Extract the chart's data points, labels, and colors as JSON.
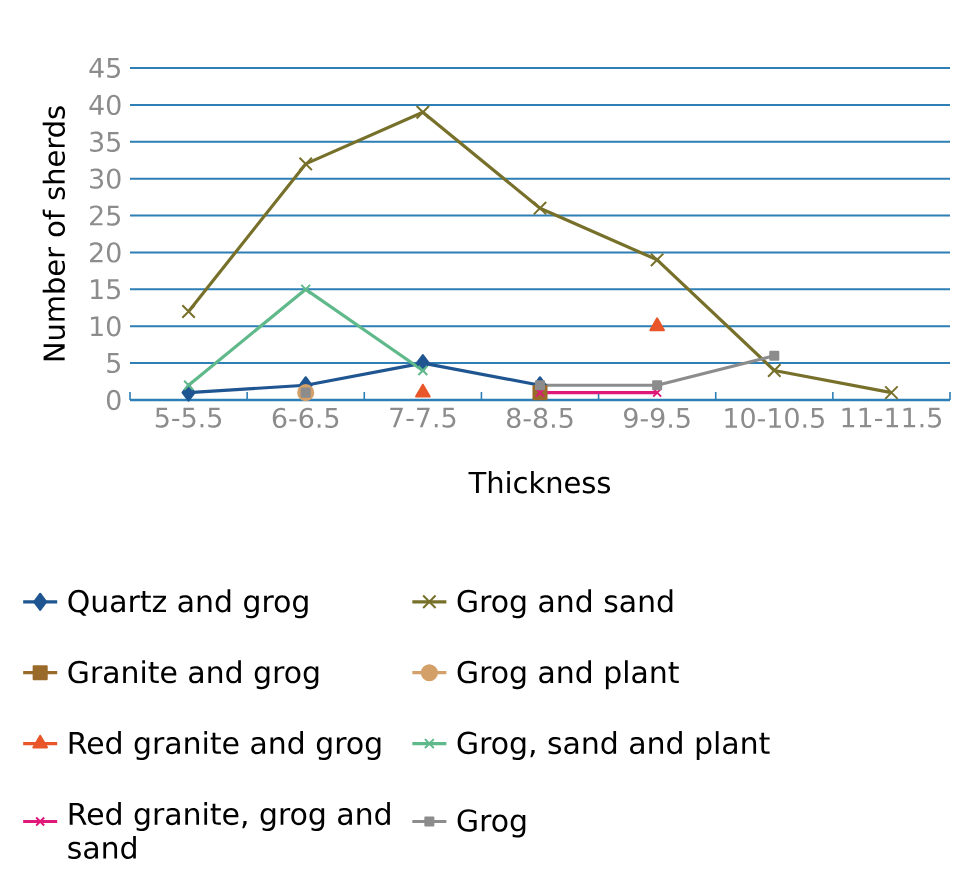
{
  "chart_data": {
    "type": "line",
    "xlabel": "Thickness",
    "ylabel": "Number of sherds",
    "categories": [
      "5-5.5",
      "6-6.5",
      "7-7.5",
      "8-8.5",
      "9-9.5",
      "10-10.5",
      "11-11.5"
    ],
    "ylim": [
      0,
      45
    ],
    "yticks": [
      0,
      5,
      10,
      15,
      20,
      25,
      30,
      35,
      40,
      45
    ],
    "grid": "y",
    "legend": "bottom",
    "series": [
      {
        "name": "Quartz and grog",
        "color": "#1f5591",
        "marker": "diamond",
        "values": [
          1,
          2,
          5,
          2,
          null,
          null,
          null
        ]
      },
      {
        "name": "Grog and sand",
        "color": "#77702a",
        "marker": "cross",
        "values": [
          12,
          32,
          39,
          26,
          19,
          4,
          1
        ]
      },
      {
        "name": "Granite and grog",
        "color": "#9a6a2a",
        "marker": "square",
        "values": [
          null,
          null,
          null,
          1,
          null,
          null,
          null
        ]
      },
      {
        "name": "Grog and plant",
        "color": "#d4a06a",
        "marker": "circle",
        "values": [
          null,
          1,
          null,
          null,
          null,
          null,
          null
        ]
      },
      {
        "name": "Red granite and grog",
        "type": "scatter",
        "color": "#e8562a",
        "marker": "triangle",
        "values": [
          null,
          null,
          1,
          null,
          10,
          null,
          null
        ]
      },
      {
        "name": "Grog, sand and plant",
        "color": "#5fb98a",
        "marker": "cross",
        "values": [
          2,
          15,
          4,
          null,
          null,
          null,
          null
        ]
      },
      {
        "name": "Red granite, grog and sand",
        "color": "#e0187a",
        "marker": "cross",
        "values": [
          null,
          null,
          null,
          1,
          1,
          null,
          null
        ]
      },
      {
        "name": "Grog",
        "color": "#8c8c8c",
        "marker": "square",
        "values": [
          null,
          1,
          null,
          2,
          2,
          6,
          null
        ]
      }
    ]
  }
}
